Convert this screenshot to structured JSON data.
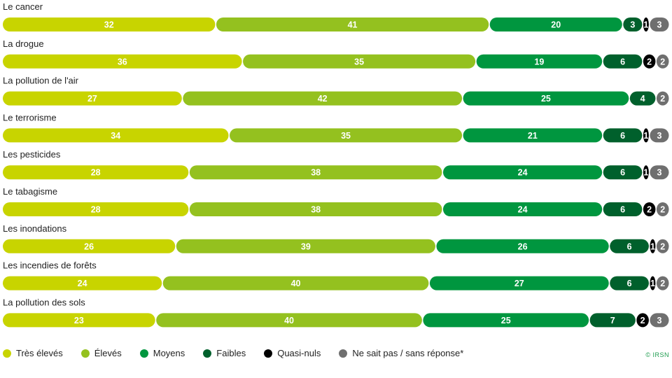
{
  "chart_data": {
    "type": "bar",
    "orientation": "horizontal",
    "stacked": true,
    "categories": [
      "Le cancer",
      "La drogue",
      "La pollution de l'air",
      "Le terrorisme",
      "Les pesticides",
      "Le tabagisme",
      "Les inondations",
      "Les incendies de forêts",
      "La pollution des sols"
    ],
    "series": [
      {
        "name": "Très élevés",
        "color": "#c8d400",
        "values": [
          32,
          36,
          27,
          34,
          28,
          28,
          26,
          24,
          23
        ]
      },
      {
        "name": "Élevés",
        "color": "#94c11f",
        "values": [
          41,
          35,
          42,
          35,
          38,
          38,
          39,
          40,
          40
        ]
      },
      {
        "name": "Moyens",
        "color": "#00963f",
        "values": [
          20,
          19,
          25,
          21,
          24,
          24,
          26,
          27,
          25
        ]
      },
      {
        "name": "Faibles",
        "color": "#00602c",
        "values": [
          3,
          6,
          4,
          6,
          6,
          6,
          6,
          6,
          7
        ]
      },
      {
        "name": "Quasi-nuls",
        "color": "#000000",
        "values": [
          1,
          2,
          0,
          1,
          1,
          2,
          1,
          1,
          2
        ]
      },
      {
        "name": "Ne sait pas / sans réponse*",
        "color": "#6f6f6f",
        "values": [
          3,
          2,
          2,
          3,
          3,
          2,
          2,
          2,
          3
        ]
      }
    ],
    "legend_position": "bottom-left",
    "grid": false
  },
  "credit": "© IRSN"
}
